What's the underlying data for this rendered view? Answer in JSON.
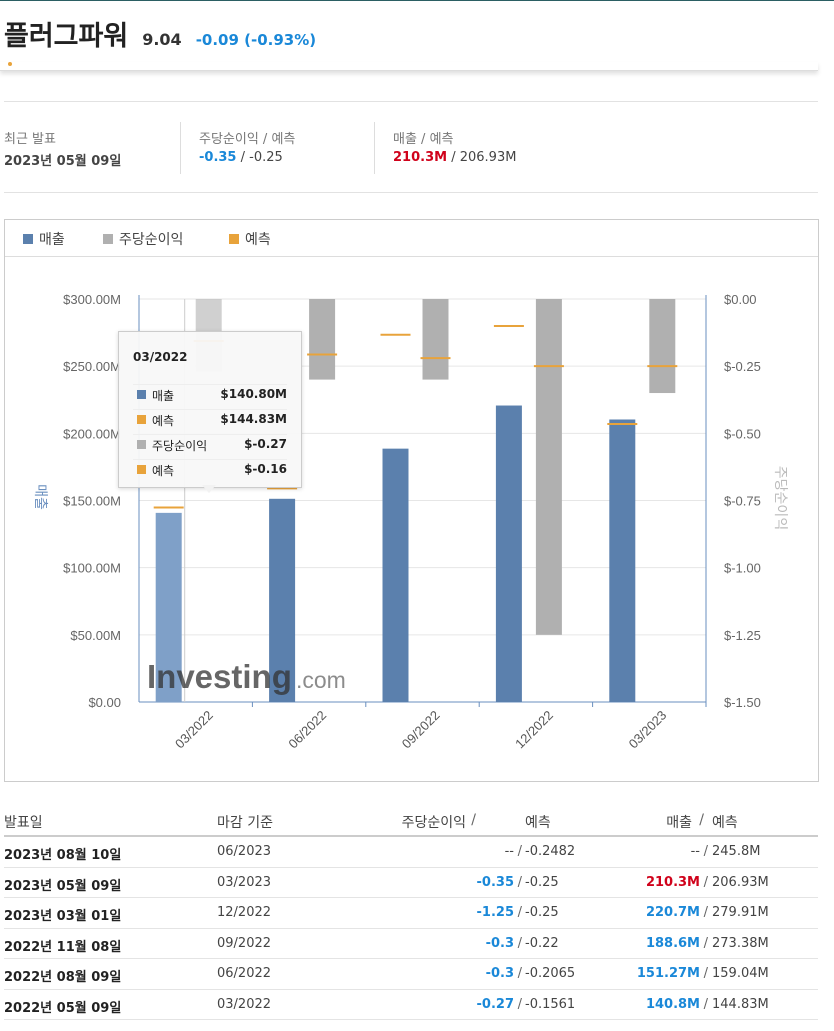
{
  "header": {
    "name": "플러그파워",
    "price": "9.04",
    "change": "-0.09 (-0.93%)"
  },
  "summary": {
    "latest": {
      "label": "최근 발표",
      "value": "2023년 05월 09일"
    },
    "eps": {
      "label": "주당순이익 / 예측",
      "actual": "-0.35",
      "sep": "/",
      "forecast": "-0.25"
    },
    "revenue": {
      "label": "매출 / 예측",
      "actual": "210.3M",
      "sep": "/",
      "forecast": "206.93M"
    }
  },
  "legend": {
    "revenue": "매출",
    "eps": "주당순이익",
    "forecast": "예측"
  },
  "colors": {
    "revenue": "#5b80ad",
    "eps": "#b0b0b0",
    "forecast": "#e8a33b",
    "negative": "#1a88d8",
    "positive_red": "#d0021b"
  },
  "chart_data": {
    "type": "bar",
    "categories": [
      "03/2022",
      "06/2022",
      "09/2022",
      "12/2022",
      "03/2023"
    ],
    "series": [
      {
        "name": "매출",
        "axis": "left",
        "values": [
          140.8,
          151.27,
          188.6,
          220.7,
          210.3
        ]
      },
      {
        "name": "예측",
        "axis": "left",
        "values": [
          144.83,
          159.04,
          273.38,
          279.91,
          206.93
        ]
      },
      {
        "name": "주당순이익",
        "axis": "right",
        "values": [
          -0.27,
          -0.3,
          -0.3,
          -1.25,
          -0.35
        ]
      },
      {
        "name": "예측",
        "axis": "right",
        "values": [
          -0.1561,
          -0.2065,
          -0.22,
          -0.25,
          -0.25
        ]
      }
    ],
    "ylabel_left": "매출",
    "ylabel_right": "주당순이익",
    "ylim_left": [
      0,
      300
    ],
    "ylim_right": [
      -1.5,
      0
    ],
    "y_ticks_left": [
      "$300.00M",
      "$250.00M",
      "$200.00M",
      "$150.00M",
      "$100.00M",
      "$50.00M",
      "$0.00"
    ],
    "y_ticks_right": [
      "$0.00",
      "$-0.25",
      "$-0.50",
      "$-0.75",
      "$-1.00",
      "$-1.25",
      "$-1.50"
    ],
    "grid": true,
    "legend": "top-left",
    "watermark": "Investing.com"
  },
  "tooltip": {
    "title": "03/2022",
    "rows": [
      {
        "name": "매출",
        "value": "$140.80M",
        "color": "#5b80ad"
      },
      {
        "name": "예측",
        "value": "$144.83M",
        "color": "#e8a33b"
      },
      {
        "name": "주당순이익",
        "value": "$-0.27",
        "color": "#b0b0b0"
      },
      {
        "name": "예측",
        "value": "$-0.16",
        "color": "#e8a33b"
      }
    ]
  },
  "table": {
    "headers": {
      "date": "발표일",
      "period": "마감 기준",
      "eps": "주당순이익",
      "eps_sep": "/",
      "eps_fc": "예측",
      "rev": "매출",
      "rev_sep": "/",
      "rev_fc": "예측"
    },
    "rows": [
      {
        "date": "2023년 08월 10일",
        "period": "06/2023",
        "eps": "--",
        "eps_fc": "-0.2482",
        "rev": "--",
        "rev_fc": "245.8M"
      },
      {
        "date": "2023년 05월 09일",
        "period": "03/2023",
        "eps": "-0.35",
        "eps_fc": "-0.25",
        "rev": "210.3M",
        "rev_fc": "206.93M"
      },
      {
        "date": "2023년 03월 01일",
        "period": "12/2022",
        "eps": "-1.25",
        "eps_fc": "-0.25",
        "rev": "220.7M",
        "rev_fc": "279.91M"
      },
      {
        "date": "2022년 11월 08일",
        "period": "09/2022",
        "eps": "-0.3",
        "eps_fc": "-0.22",
        "rev": "188.6M",
        "rev_fc": "273.38M"
      },
      {
        "date": "2022년 08월 09일",
        "period": "06/2022",
        "eps": "-0.3",
        "eps_fc": "-0.2065",
        "rev": "151.27M",
        "rev_fc": "159.04M"
      },
      {
        "date": "2022년 05월 09일",
        "period": "03/2022",
        "eps": "-0.27",
        "eps_fc": "-0.1561",
        "rev": "140.8M",
        "rev_fc": "144.83M"
      }
    ]
  }
}
